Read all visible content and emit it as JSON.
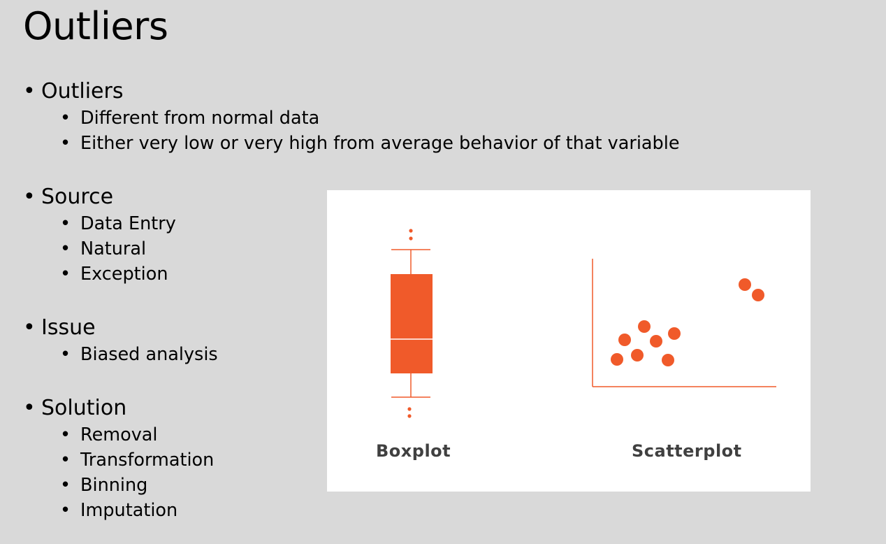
{
  "slide": {
    "title": "Outliers"
  },
  "bullets": [
    {
      "label": "Outliers",
      "children": [
        "Different from normal data",
        "Either very low or very high from average behavior of that variable"
      ]
    },
    {
      "label": "Source",
      "children": [
        "Data Entry",
        "Natural",
        "Exception"
      ]
    },
    {
      "label": "Issue",
      "children": [
        "Biased analysis"
      ]
    },
    {
      "label": "Solution",
      "children": [
        "Removal",
        "Transformation",
        "Binning",
        "Imputation"
      ]
    }
  ],
  "bullet_glyph": "•",
  "figure": {
    "boxplot_caption": "Boxplot",
    "scatterplot_caption": "Scatterplot",
    "accent_color": "#f05a2a",
    "axis_color": "#f05a2a"
  }
}
